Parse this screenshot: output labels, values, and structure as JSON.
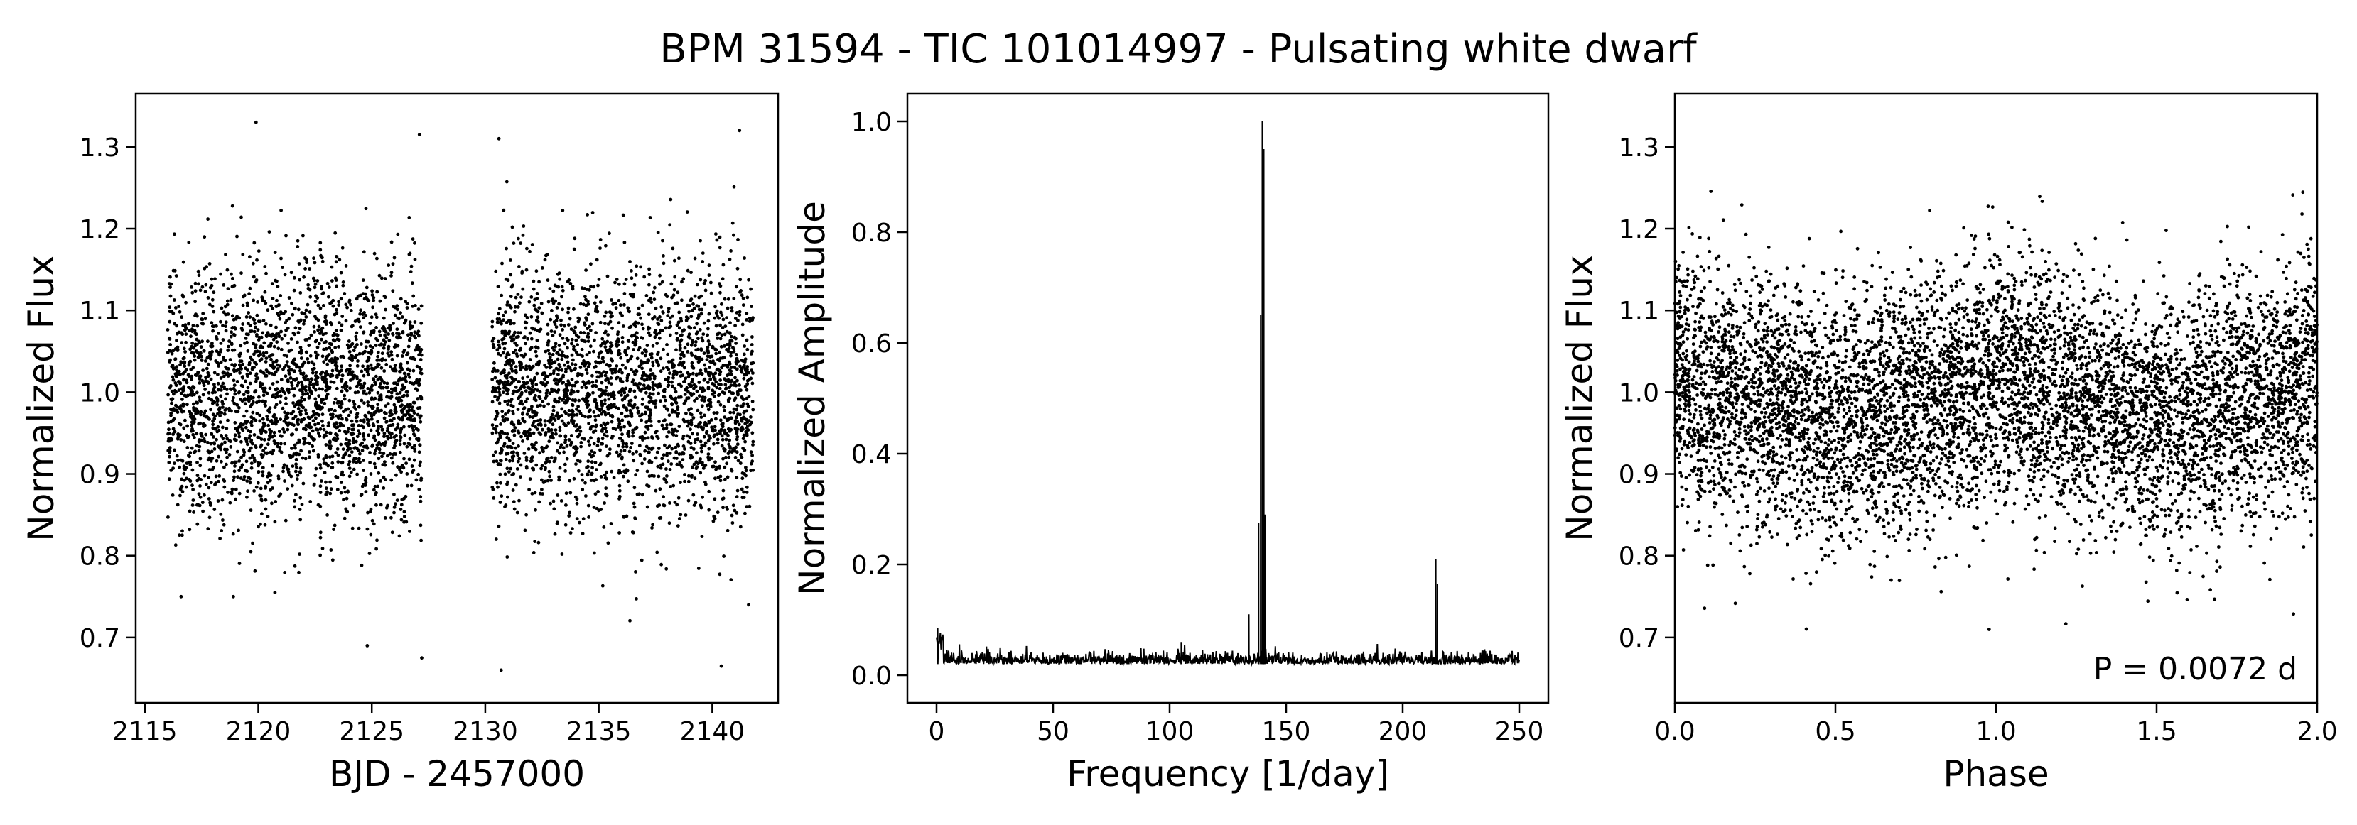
{
  "figure": {
    "title": "BPM 31594 - TIC 101014997 - Pulsating white dwarf"
  },
  "chart_data": [
    {
      "type": "scatter",
      "panel": "light-curve",
      "title": "",
      "xlabel": "BJD - 2457000",
      "ylabel": "Normalized Flux",
      "xlim": [
        2114.6,
        2142.9
      ],
      "ylim": [
        0.62,
        1.365
      ],
      "xticks": [
        2115,
        2120,
        2125,
        2130,
        2135,
        2140
      ],
      "yticks": [
        0.7,
        0.8,
        0.9,
        1.0,
        1.1,
        1.2,
        1.3
      ],
      "grid": false,
      "segments": [
        {
          "x_start": 2116.0,
          "x_end": 2127.2
        },
        {
          "x_start": 2130.3,
          "x_end": 2141.8
        }
      ],
      "sample_points": [
        {
          "x": 2119.9,
          "y": 1.33
        },
        {
          "x": 2127.1,
          "y": 1.315
        },
        {
          "x": 2130.6,
          "y": 1.31
        },
        {
          "x": 2141.2,
          "y": 1.32
        },
        {
          "x": 2124.8,
          "y": 0.69
        },
        {
          "x": 2127.2,
          "y": 0.675
        },
        {
          "x": 2130.7,
          "y": 0.66
        },
        {
          "x": 2140.4,
          "y": 0.665
        },
        {
          "x": 2116.6,
          "y": 0.75
        },
        {
          "x": 2118.9,
          "y": 0.75
        },
        {
          "x": 2141.6,
          "y": 0.74
        }
      ],
      "noise_sigma": 0.075,
      "center": 1.0,
      "point_color": "#000000"
    },
    {
      "type": "line",
      "panel": "periodogram",
      "title": "",
      "xlabel": "Frequency [1/day]",
      "ylabel": "Normalized Amplitude",
      "xlim": [
        -12.5,
        262.5
      ],
      "ylim": [
        -0.05,
        1.05
      ],
      "xticks": [
        0,
        50,
        100,
        150,
        200,
        250
      ],
      "yticks": [
        0.0,
        0.2,
        0.4,
        0.6,
        0.8,
        1.0
      ],
      "grid": false,
      "x_range": [
        0,
        250
      ],
      "noise_floor": 0.02,
      "peaks": [
        {
          "x": 0.5,
          "y": 0.085
        },
        {
          "x": 105,
          "y": 0.06
        },
        {
          "x": 134,
          "y": 0.11
        },
        {
          "x": 138.2,
          "y": 0.275
        },
        {
          "x": 139.1,
          "y": 0.65
        },
        {
          "x": 139.8,
          "y": 1.0
        },
        {
          "x": 140.4,
          "y": 0.95
        },
        {
          "x": 141.0,
          "y": 0.29
        },
        {
          "x": 214.2,
          "y": 0.21
        },
        {
          "x": 214.9,
          "y": 0.165
        }
      ],
      "line_color": "#000000"
    },
    {
      "type": "scatter",
      "panel": "phase-fold",
      "title": "",
      "xlabel": "Phase",
      "ylabel": "Normalized Flux",
      "xlim": [
        0.0,
        2.0
      ],
      "ylim": [
        0.62,
        1.365
      ],
      "xticks": [
        0.0,
        0.5,
        1.0,
        1.5,
        2.0
      ],
      "yticks": [
        0.7,
        0.8,
        0.9,
        1.0,
        1.1,
        1.2,
        1.3
      ],
      "grid": false,
      "annotation": "P = 0.0072 d",
      "annotation_position": "bottom-right",
      "mean_curve": [
        {
          "x": 0.0,
          "y": 1.02
        },
        {
          "x": 0.25,
          "y": 0.985
        },
        {
          "x": 0.5,
          "y": 0.96
        },
        {
          "x": 0.75,
          "y": 0.985
        },
        {
          "x": 1.0,
          "y": 1.02
        },
        {
          "x": 1.25,
          "y": 0.985
        },
        {
          "x": 1.5,
          "y": 0.96
        },
        {
          "x": 1.75,
          "y": 0.985
        },
        {
          "x": 2.0,
          "y": 1.02
        }
      ],
      "noise_sigma": 0.075,
      "point_color": "#000000"
    }
  ]
}
